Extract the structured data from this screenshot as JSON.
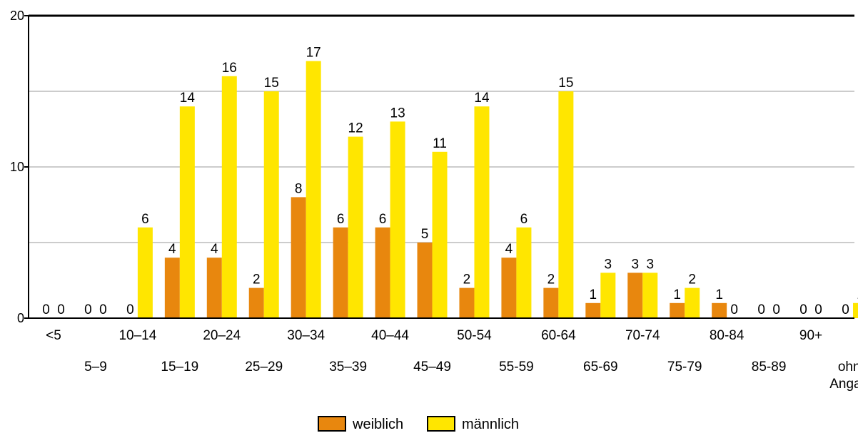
{
  "chart_data": {
    "type": "bar",
    "categories": [
      "<5",
      "5–9",
      "10–14",
      "15–19",
      "20–24",
      "25–29",
      "30–34",
      "35–39",
      "40–44",
      "45–49",
      "50-54",
      "55-59",
      "60-64",
      "65-69",
      "70-74",
      "75-79",
      "80-84",
      "85-89",
      "90+",
      "ohne Angabe"
    ],
    "series": [
      {
        "name": "weiblich",
        "color": "#E8870E",
        "values": [
          0,
          0,
          0,
          4,
          4,
          2,
          8,
          6,
          6,
          5,
          2,
          4,
          2,
          1,
          3,
          1,
          1,
          0,
          0,
          0
        ]
      },
      {
        "name": "männlich",
        "color": "#FFE600",
        "values": [
          0,
          0,
          6,
          14,
          16,
          15,
          17,
          12,
          13,
          11,
          14,
          6,
          15,
          3,
          3,
          2,
          0,
          0,
          0,
          1
        ]
      }
    ],
    "ylim": [
      0,
      20
    ],
    "yticks": [
      "0",
      "10",
      "20"
    ],
    "gridlines": [
      5,
      10,
      15
    ],
    "grid": true,
    "legend_position": "bottom-center",
    "xlabel": "",
    "ylabel": ""
  }
}
